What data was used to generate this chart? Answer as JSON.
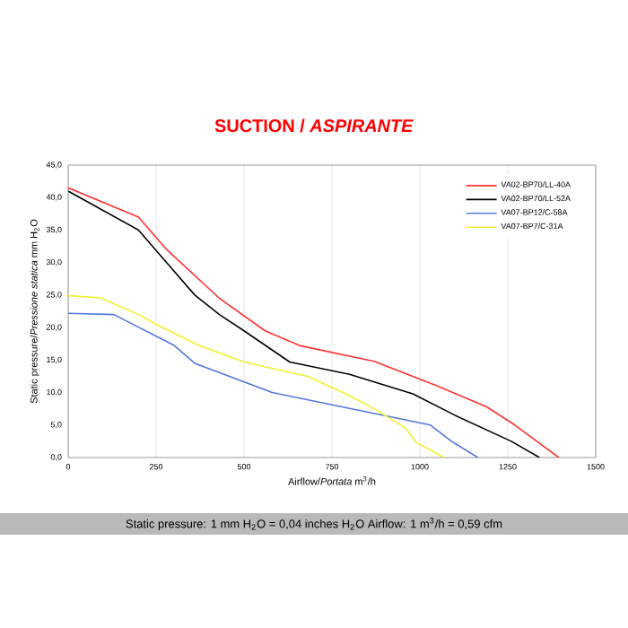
{
  "chart_data": {
    "type": "line",
    "title": "SUCTION / *ASPIRANTE*",
    "xlabel": "Airflow/*Portata* m$^{3}$/h",
    "ylabel": "Static pressure/*Pressione statica* mm H$_{2}$O",
    "annotations": [
      "Static pressure: 1 mm H$_{2}$O = 0,04 inches H$_{2}$O      Airflow: 1 m$^{3}$/h = 0,59 cfm"
    ],
    "xlim": [
      0,
      1500
    ],
    "xticks": [
      0,
      250,
      500,
      750,
      1000,
      1250,
      1500
    ],
    "ylim": [
      0,
      45
    ],
    "yticks": [
      {
        "value": 0,
        "label": "0,0"
      },
      {
        "value": 5,
        "label": "5,0"
      },
      {
        "value": 10,
        "label": "10,0"
      },
      {
        "value": 15,
        "label": "15,0"
      },
      {
        "value": 20,
        "label": "20,0"
      },
      {
        "value": 25,
        "label": "25,0"
      },
      {
        "value": 30,
        "label": "30,0"
      },
      {
        "value": 35,
        "label": "35,0"
      },
      {
        "value": 40,
        "label": "40,0"
      },
      {
        "value": 45,
        "label": "45,0"
      }
    ],
    "grid": "x",
    "legend": "top right",
    "marker": "none",
    "line_style": "solid",
    "series": [
      {
        "name": "VA02-BP70/LL-40A",
        "color": "#ff3333",
        "x": [
          0,
          200,
          280,
          430,
          560,
          660,
          870,
          1050,
          1190,
          1270,
          1395
        ],
        "values": [
          41.5,
          37,
          32,
          24.5,
          19.5,
          17.2,
          14.8,
          11,
          7.8,
          5,
          0
        ]
      },
      {
        "name": "VA02-BP70/LL-52A",
        "color": "#000000",
        "x": [
          0,
          200,
          280,
          360,
          430,
          500,
          630,
          800,
          980,
          1100,
          1260,
          1340
        ],
        "values": [
          41,
          35,
          30,
          25,
          22,
          19.5,
          14.7,
          12.8,
          9.8,
          6.5,
          2.5,
          0
        ]
      },
      {
        "name": "VA07-BP12/C-58A",
        "color": "#5577dd",
        "x": [
          0,
          130,
          300,
          360,
          580,
          1030,
          1090,
          1165
        ],
        "values": [
          22.2,
          22,
          17.3,
          14.5,
          10,
          5,
          2.5,
          0
        ]
      },
      {
        "name": "VA07-BP7/C-31A",
        "color": "#f0f030",
        "x": [
          0,
          90,
          200,
          250,
          370,
          500,
          680,
          790,
          870,
          960,
          990,
          1070
        ],
        "values": [
          24.9,
          24.6,
          22,
          20.5,
          17.3,
          14.7,
          12.5,
          9.8,
          7.5,
          4.5,
          2.3,
          0
        ]
      }
    ]
  }
}
